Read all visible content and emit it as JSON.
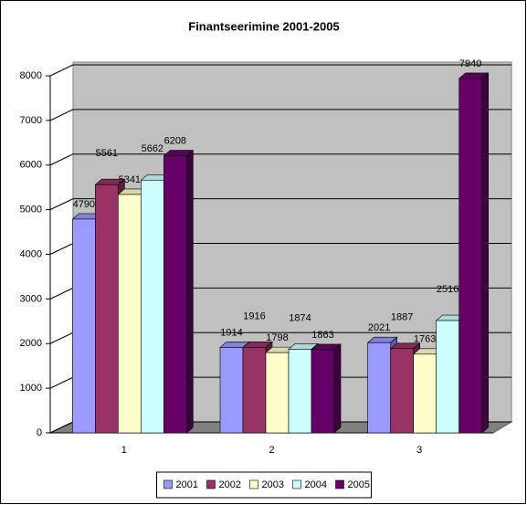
{
  "chart_data": {
    "type": "bar3d",
    "title": "Finantseerimine 2001-2005",
    "categories": [
      "1",
      "2",
      "3"
    ],
    "series": [
      {
        "name": "2001",
        "color": "#9999ff",
        "values": [
          4790,
          1914,
          2021
        ]
      },
      {
        "name": "2002",
        "color": "#993366",
        "values": [
          5561,
          1916,
          1887
        ]
      },
      {
        "name": "2003",
        "color": "#ffffcc",
        "values": [
          5341,
          1798,
          1763
        ]
      },
      {
        "name": "2004",
        "color": "#ccffff",
        "values": [
          5662,
          1874,
          2516
        ]
      },
      {
        "name": "2005",
        "color": "#660066",
        "values": [
          6208,
          1863,
          7940
        ]
      }
    ],
    "ylim": [
      0,
      8000
    ],
    "yticks": [
      0,
      1000,
      2000,
      3000,
      4000,
      5000,
      6000,
      7000,
      8000
    ],
    "grid": true,
    "legend": "bottom"
  }
}
